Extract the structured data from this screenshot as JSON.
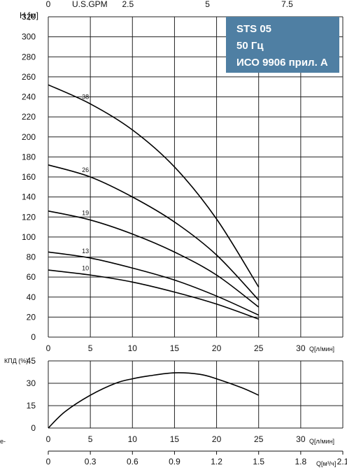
{
  "chart_data": [
    {
      "type": "line",
      "title_box": [
        "STS 05",
        "50 Гц",
        "ИСО 9906 прил. A"
      ],
      "title_box_color": "#4f7fa3",
      "ylabel": "H [м]",
      "xlabel": "Q[л/мин]",
      "top_axis_label": "U.S.GPM",
      "top_axis_ticks": [
        "0",
        "2.5",
        "5",
        "7.5"
      ],
      "top_axis_values": [
        0,
        2.5,
        5,
        7.5
      ],
      "xlim": [
        0,
        35
      ],
      "ylim": [
        0,
        320
      ],
      "x_ticks": [
        0,
        5,
        10,
        15,
        20,
        25,
        30
      ],
      "y_ticks": [
        0,
        20,
        40,
        60,
        80,
        100,
        120,
        140,
        160,
        180,
        200,
        220,
        240,
        260,
        280,
        300,
        320
      ],
      "grid": true,
      "series": [
        {
          "name": "38",
          "x": [
            0,
            5,
            10,
            15,
            20,
            25
          ],
          "values": [
            252,
            233,
            207,
            170,
            118,
            50
          ]
        },
        {
          "name": "26",
          "x": [
            0,
            5,
            10,
            15,
            20,
            25
          ],
          "values": [
            172,
            160,
            140,
            115,
            82,
            37
          ]
        },
        {
          "name": "19",
          "x": [
            0,
            5,
            10,
            15,
            20,
            25
          ],
          "values": [
            126,
            117,
            103,
            85,
            62,
            30
          ]
        },
        {
          "name": "13",
          "x": [
            0,
            5,
            10,
            15,
            20,
            25
          ],
          "values": [
            85,
            79,
            69,
            57,
            41,
            22
          ]
        },
        {
          "name": "10",
          "x": [
            0,
            5,
            10,
            15,
            20,
            25
          ],
          "values": [
            67,
            62,
            55,
            45,
            33,
            18
          ]
        }
      ]
    },
    {
      "type": "line",
      "ylabel": "КПД (%)",
      "xlabel": "Q[л/мин]",
      "xlim": [
        0,
        35
      ],
      "ylim": [
        0,
        45
      ],
      "x_ticks": [
        0,
        5,
        10,
        15,
        20,
        25,
        30
      ],
      "y_ticks": [
        0,
        15,
        30,
        45
      ],
      "grid": true,
      "series": [
        {
          "x": [
            0,
            2,
            5,
            8,
            10,
            12,
            15,
            18,
            20,
            23,
            25
          ],
          "values": [
            0,
            11,
            22,
            30,
            33,
            35,
            37,
            36,
            33,
            27,
            22
          ]
        }
      ]
    }
  ],
  "m3_axis": {
    "label": "Q[м³/ч]",
    "ticks": [
      "0",
      "0.3",
      "0.6",
      "0.9",
      "1.2",
      "1.5",
      "1.8",
      "2.1"
    ],
    "values": [
      0,
      0.3,
      0.6,
      0.9,
      1.2,
      1.5,
      1.8,
      2.1
    ]
  },
  "edge_fragment": "e-"
}
